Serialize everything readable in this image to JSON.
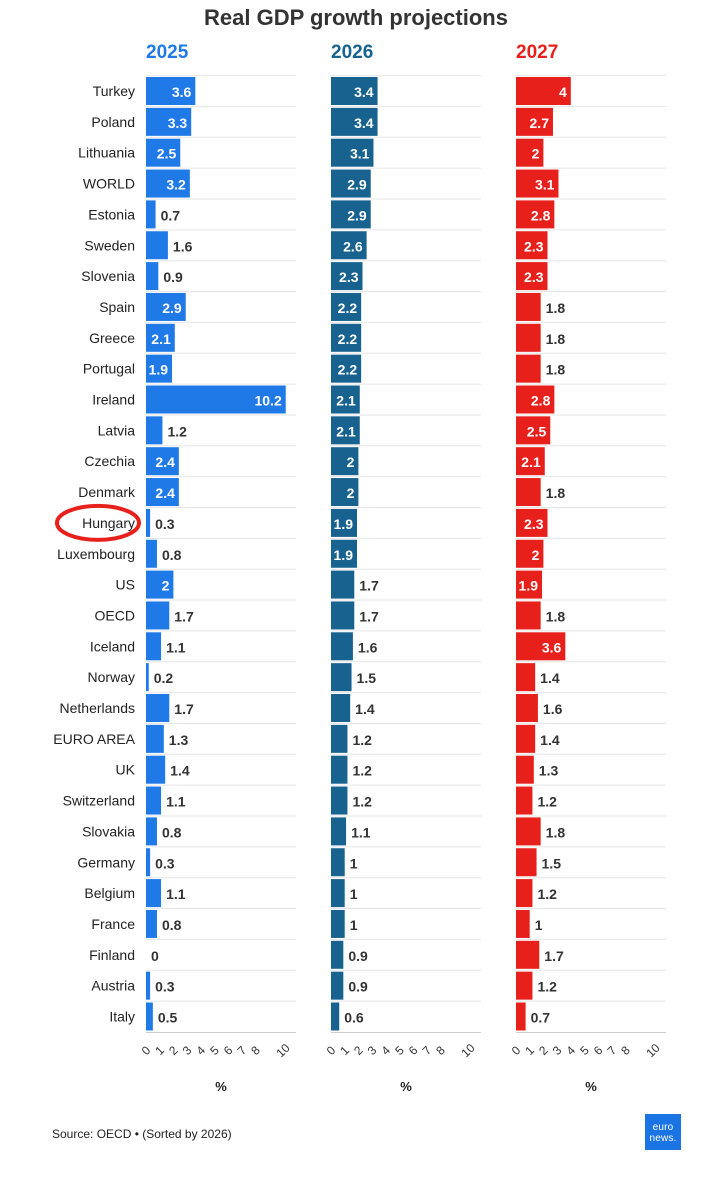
{
  "chart_data": {
    "type": "bar",
    "orientation": "horizontal",
    "title": "Real GDP growth projections",
    "categories": [
      "Turkey",
      "Poland",
      "Lithuania",
      "WORLD",
      "Estonia",
      "Sweden",
      "Slovenia",
      "Spain",
      "Greece",
      "Portugal",
      "Ireland",
      "Latvia",
      "Czechia",
      "Denmark",
      "Hungary",
      "Luxembourg",
      "US",
      "OECD",
      "Iceland",
      "Norway",
      "Netherlands",
      "EURO AREA",
      "UK",
      "Switzerland",
      "Slovakia",
      "Germany",
      "Belgium",
      "France",
      "Finland",
      "Austria",
      "Italy"
    ],
    "series": [
      {
        "name": "2025",
        "color": "#1f7ae8",
        "values": [
          3.6,
          3.3,
          2.5,
          3.2,
          0.7,
          1.6,
          0.9,
          2.9,
          2.1,
          1.9,
          10.2,
          1.2,
          2.4,
          2.4,
          0.3,
          0.8,
          2,
          1.7,
          1.1,
          0.2,
          1.7,
          1.3,
          1.4,
          1.1,
          0.8,
          0.3,
          1.1,
          0.8,
          0,
          0.3,
          0.5
        ]
      },
      {
        "name": "2026",
        "color": "#17628f",
        "values": [
          3.4,
          3.4,
          3.1,
          2.9,
          2.9,
          2.6,
          2.3,
          2.2,
          2.2,
          2.2,
          2.1,
          2.1,
          2,
          2,
          1.9,
          1.9,
          1.7,
          1.7,
          1.6,
          1.5,
          1.4,
          1.2,
          1.2,
          1.2,
          1.1,
          1,
          1,
          1,
          0.9,
          0.9,
          0.6
        ]
      },
      {
        "name": "2027",
        "color": "#e8201c",
        "values": [
          4,
          2.7,
          2,
          3.1,
          2.8,
          2.3,
          2.3,
          1.8,
          1.8,
          1.8,
          2.8,
          2.5,
          2.1,
          1.8,
          2.3,
          2,
          1.9,
          1.8,
          3.6,
          1.4,
          1.6,
          1.4,
          1.3,
          1.2,
          1.8,
          1.5,
          1.2,
          1,
          1.7,
          1.2,
          0.7
        ]
      }
    ],
    "x_ticks": [
      "0",
      "1",
      "2",
      "3",
      "4",
      "5",
      "6",
      "7",
      "8",
      "10"
    ],
    "xlabel": "%",
    "xlim": [
      0,
      10
    ],
    "highlighted_category": "Hungary",
    "highlight_color": "#e8201c",
    "sort_note": "Sorted by 2026"
  },
  "source": "Source: OECD • (Sorted by 2026)",
  "logo": {
    "line1": "euro",
    "line2": "news."
  }
}
